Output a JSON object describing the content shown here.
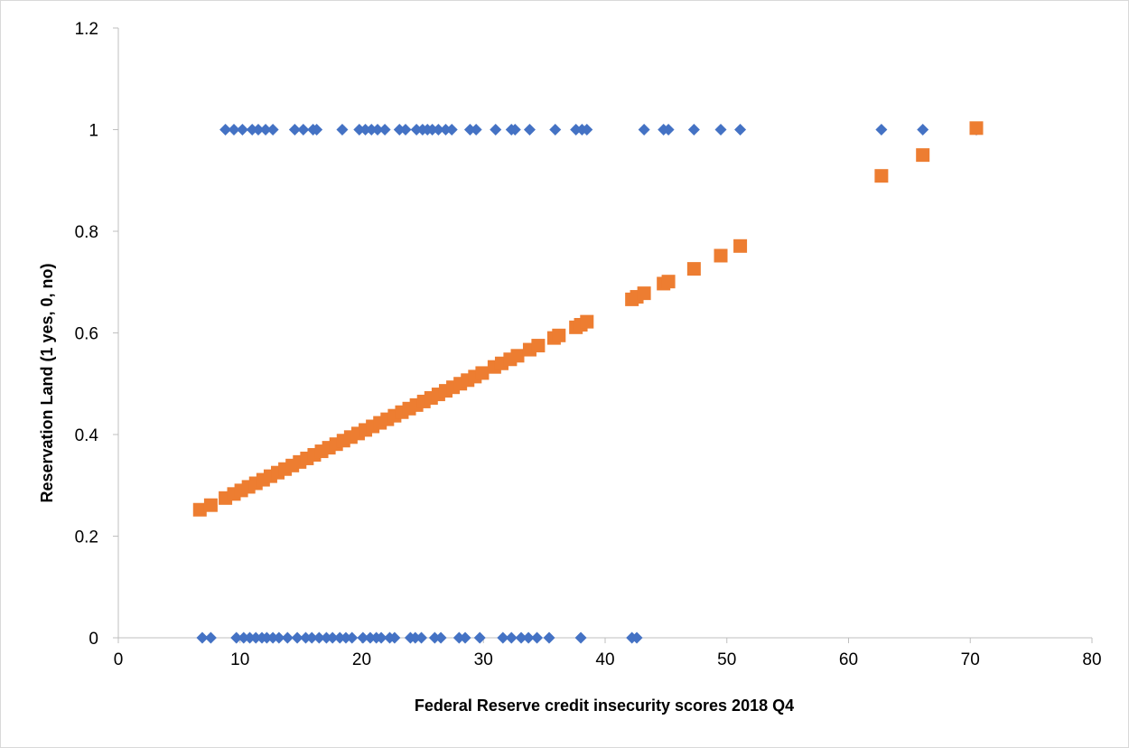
{
  "chart_data": {
    "type": "scatter",
    "title": "",
    "xlabel": "Federal Reserve credit insecurity scores 2018 Q4",
    "ylabel": "Reservation Land (1 yes, 0, no)",
    "xlim": [
      0,
      80
    ],
    "ylim": [
      0,
      1.2
    ],
    "x_ticks": [
      "0",
      "10",
      "20",
      "30",
      "40",
      "50",
      "60",
      "70",
      "80"
    ],
    "y_ticks": [
      "0",
      "0.2",
      "0.4",
      "0.6",
      "0.8",
      "1",
      "1.2"
    ],
    "grid": false,
    "legend": "none",
    "series": [
      {
        "marker": "diamond",
        "color": "#4472C4",
        "points": [
          [
            8.8,
            1
          ],
          [
            9.5,
            1
          ],
          [
            10.2,
            1
          ],
          [
            11,
            1
          ],
          [
            11.5,
            1
          ],
          [
            12.1,
            1
          ],
          [
            12.7,
            1
          ],
          [
            14.5,
            1
          ],
          [
            15.2,
            1
          ],
          [
            16,
            1
          ],
          [
            16.3,
            1
          ],
          [
            18.4,
            1
          ],
          [
            19.8,
            1
          ],
          [
            20.3,
            1
          ],
          [
            20.8,
            1
          ],
          [
            21.3,
            1
          ],
          [
            21.9,
            1
          ],
          [
            23.1,
            1
          ],
          [
            23.6,
            1
          ],
          [
            24.5,
            1
          ],
          [
            25,
            1
          ],
          [
            25.4,
            1
          ],
          [
            25.8,
            1
          ],
          [
            26.3,
            1
          ],
          [
            26.9,
            1
          ],
          [
            27.4,
            1
          ],
          [
            28.9,
            1
          ],
          [
            29.4,
            1
          ],
          [
            31,
            1
          ],
          [
            32.3,
            1
          ],
          [
            32.6,
            1
          ],
          [
            33.8,
            1
          ],
          [
            35.9,
            1
          ],
          [
            37.6,
            1
          ],
          [
            38.1,
            1
          ],
          [
            38.5,
            1
          ],
          [
            43.2,
            1
          ],
          [
            44.8,
            1
          ],
          [
            45.2,
            1
          ],
          [
            47.3,
            1
          ],
          [
            49.5,
            1
          ],
          [
            51.1,
            1
          ],
          [
            62.7,
            1
          ],
          [
            66.1,
            1
          ],
          [
            70.5,
            1
          ],
          [
            6.9,
            0
          ],
          [
            7.6,
            0
          ],
          [
            9.7,
            0
          ],
          [
            10.3,
            0
          ],
          [
            10.8,
            0
          ],
          [
            11.3,
            0
          ],
          [
            11.8,
            0
          ],
          [
            12.2,
            0
          ],
          [
            12.7,
            0
          ],
          [
            13.2,
            0
          ],
          [
            13.9,
            0
          ],
          [
            14.7,
            0
          ],
          [
            15.4,
            0
          ],
          [
            15.9,
            0
          ],
          [
            16.5,
            0
          ],
          [
            17.1,
            0
          ],
          [
            17.6,
            0
          ],
          [
            18.2,
            0
          ],
          [
            18.7,
            0
          ],
          [
            19.2,
            0
          ],
          [
            20.1,
            0
          ],
          [
            20.7,
            0
          ],
          [
            21.2,
            0
          ],
          [
            21.6,
            0
          ],
          [
            22.3,
            0
          ],
          [
            22.7,
            0
          ],
          [
            24,
            0
          ],
          [
            24.4,
            0
          ],
          [
            24.9,
            0
          ],
          [
            26,
            0
          ],
          [
            26.5,
            0
          ],
          [
            28,
            0
          ],
          [
            28.5,
            0
          ],
          [
            29.7,
            0
          ],
          [
            31.6,
            0
          ],
          [
            32.3,
            0
          ],
          [
            33.1,
            0
          ],
          [
            33.7,
            0
          ],
          [
            34.4,
            0
          ],
          [
            35.4,
            0
          ],
          [
            38,
            0
          ],
          [
            42.2,
            0
          ],
          [
            42.6,
            0
          ]
        ]
      },
      {
        "marker": "square",
        "color": "#ED7D31",
        "points": [
          [
            6.7,
            0.252
          ],
          [
            7.6,
            0.261
          ],
          [
            8.8,
            0.275
          ],
          [
            9.5,
            0.283
          ],
          [
            10.1,
            0.29
          ],
          [
            10.7,
            0.297
          ],
          [
            11.3,
            0.304
          ],
          [
            11.9,
            0.311
          ],
          [
            12.5,
            0.318
          ],
          [
            13.1,
            0.325
          ],
          [
            13.7,
            0.332
          ],
          [
            14.3,
            0.339
          ],
          [
            14.9,
            0.346
          ],
          [
            15.5,
            0.353
          ],
          [
            16.1,
            0.36
          ],
          [
            16.7,
            0.367
          ],
          [
            17.3,
            0.374
          ],
          [
            17.9,
            0.381
          ],
          [
            18.5,
            0.388
          ],
          [
            19.1,
            0.395
          ],
          [
            19.7,
            0.402
          ],
          [
            20.3,
            0.409
          ],
          [
            20.9,
            0.416
          ],
          [
            21.5,
            0.423
          ],
          [
            22.1,
            0.43
          ],
          [
            22.7,
            0.437
          ],
          [
            23.3,
            0.444
          ],
          [
            23.9,
            0.451
          ],
          [
            24.5,
            0.458
          ],
          [
            25.1,
            0.465
          ],
          [
            25.7,
            0.472
          ],
          [
            26.3,
            0.479
          ],
          [
            26.9,
            0.486
          ],
          [
            27.5,
            0.493
          ],
          [
            28.1,
            0.5
          ],
          [
            28.7,
            0.507
          ],
          [
            29.3,
            0.514
          ],
          [
            29.9,
            0.521
          ],
          [
            30.9,
            0.533
          ],
          [
            31.5,
            0.54
          ],
          [
            32.2,
            0.548
          ],
          [
            32.8,
            0.555
          ],
          [
            33.8,
            0.567
          ],
          [
            34.5,
            0.575
          ],
          [
            35.8,
            0.59
          ],
          [
            36.2,
            0.595
          ],
          [
            37.6,
            0.611
          ],
          [
            38,
            0.616
          ],
          [
            38.5,
            0.622
          ],
          [
            42.2,
            0.666
          ],
          [
            42.6,
            0.671
          ],
          [
            43.2,
            0.678
          ],
          [
            44.8,
            0.697
          ],
          [
            45.2,
            0.701
          ],
          [
            47.3,
            0.726
          ],
          [
            49.5,
            0.752
          ],
          [
            51.1,
            0.771
          ],
          [
            62.7,
            0.909
          ],
          [
            66.1,
            0.95
          ],
          [
            70.5,
            1.003
          ]
        ]
      }
    ]
  }
}
